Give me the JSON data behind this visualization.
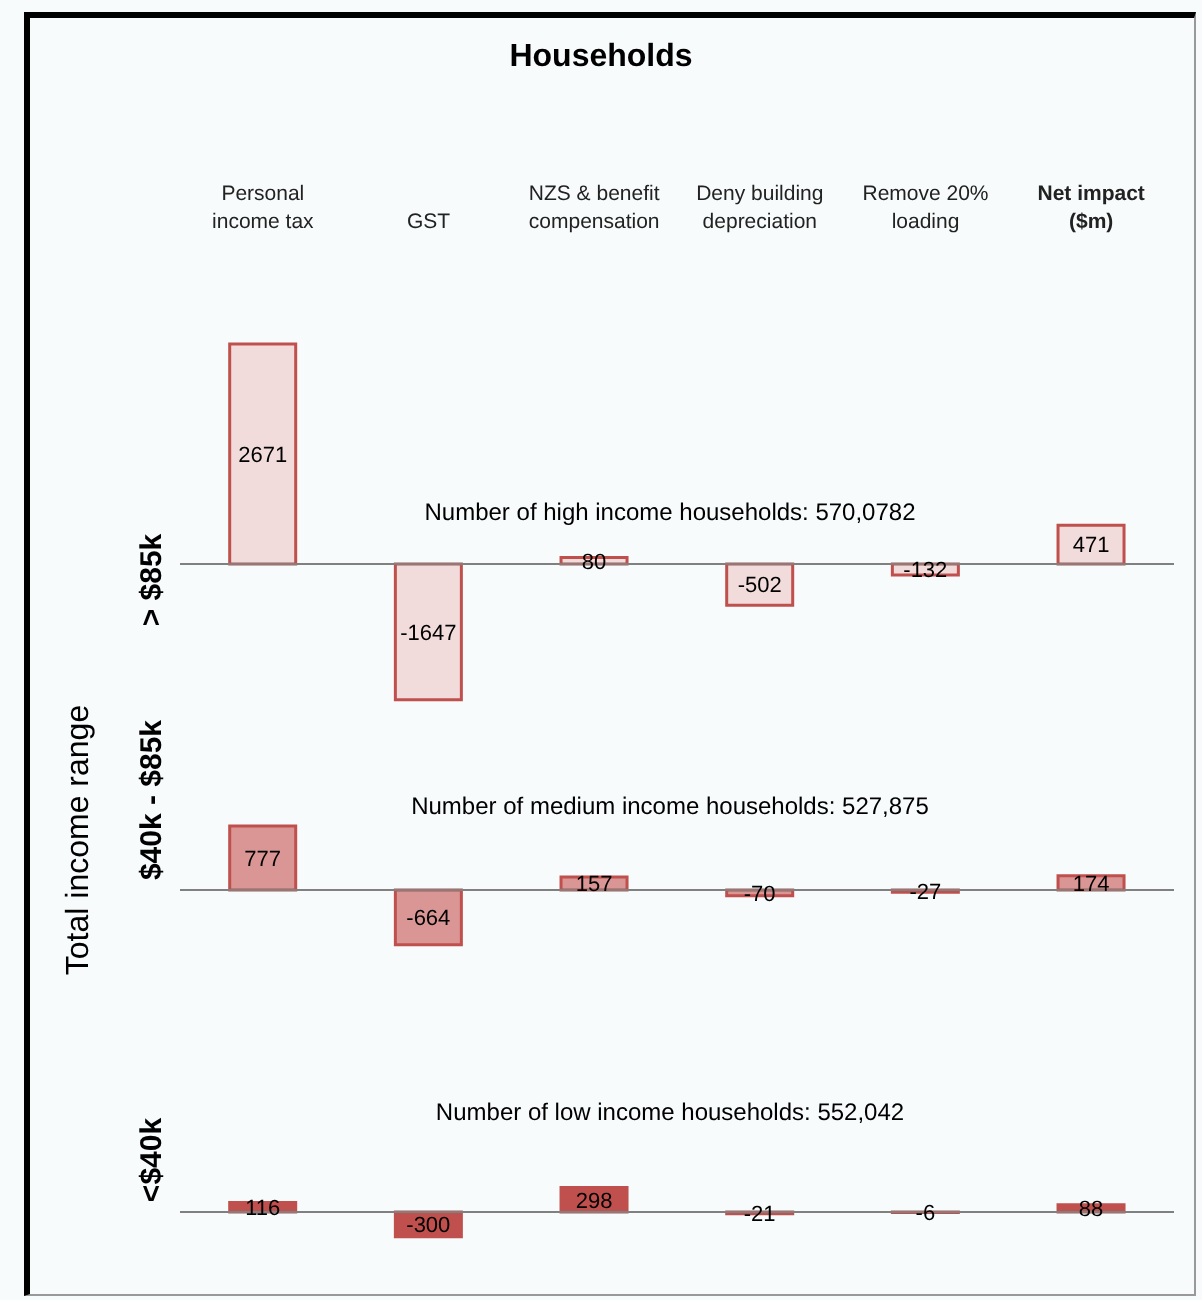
{
  "chart_data": [
    {
      "type": "bar",
      "title": "Households",
      "ylabel": "> $85k",
      "categories": [
        "Personal income tax",
        "GST",
        "NZS & benefit compensation",
        "Deny building depreciation",
        "Remove 20% loading",
        "Net impact ($m)"
      ],
      "values": [
        2671,
        -1647,
        80,
        -502,
        -132,
        471
      ],
      "color": "#f2dcdb",
      "data_labels": true,
      "grid": false,
      "legend": false,
      "annotations": [
        "Number of high income households: 570,0782"
      ]
    },
    {
      "type": "bar",
      "ylabel": "$40k - $85k",
      "categories": [
        null,
        null,
        null,
        null,
        null,
        null
      ],
      "values": [
        777,
        -664,
        157,
        -70,
        -27,
        174
      ],
      "color": "#d99694",
      "data_labels": true,
      "grid": false,
      "legend": false,
      "annotations": [
        "Number of medium income households: 527,875",
        "Total income range"
      ]
    },
    {
      "type": "bar",
      "ylabel": "<$40k",
      "categories": [
        null,
        null,
        null,
        null,
        null,
        null
      ],
      "values": [
        116,
        -300,
        298,
        -21,
        -6,
        88
      ],
      "color": "#c0504d",
      "data_labels": true,
      "grid": false,
      "legend": false,
      "annotations": [
        "Number of low income households: 552,042"
      ]
    }
  ]
}
